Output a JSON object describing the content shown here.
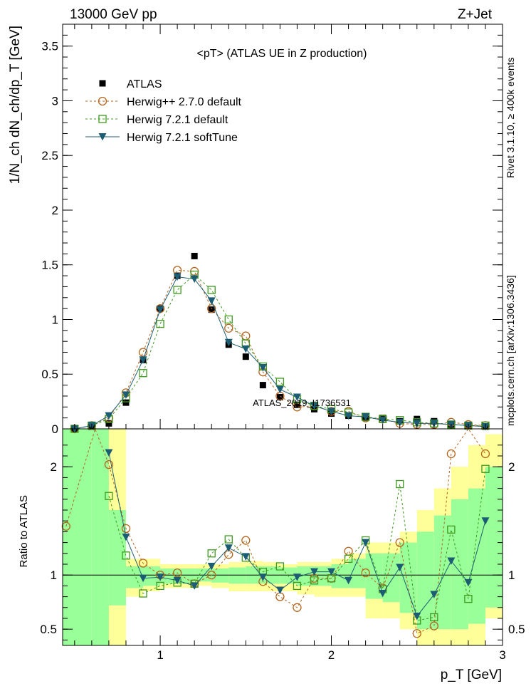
{
  "header": {
    "left": "13000 GeV pp",
    "right": "Z+Jet",
    "plot_title": "<pT> (ATLAS UE in Z production)",
    "side_top": "Rivet 3.1.10, ≥ 400k events",
    "side_bottom": "mcplots.cern.ch [arXiv:1306.3436]",
    "watermark": "ATLAS_2019_I1736531"
  },
  "colors": {
    "atlas": "#000000",
    "herwigpp": "#b5651d",
    "herwig_default": "#3f9a1f",
    "herwig_softtune": "#1d5d73",
    "band_yellow": "#ffff99",
    "band_green": "#99ff99"
  },
  "chart_data": {
    "type": "line",
    "xlabel": "p_T [GeV]",
    "ylabel": "1/N_ch dN_ch/dp_T [GeV]",
    "ratio_ylabel": "Ratio to ATLAS",
    "xlim": [
      0.43,
      3.0
    ],
    "ylim": [
      0,
      3.7
    ],
    "ratio_ylim": [
      0.35,
      2.35
    ],
    "x_ticks": [
      1,
      2,
      3
    ],
    "y_ticks": [
      0,
      0.5,
      1,
      1.5,
      2,
      2.5,
      3,
      3.5
    ],
    "ratio_ticks": [
      0.5,
      1,
      2
    ],
    "legend_position": "top-left",
    "x": [
      0.5,
      0.6,
      0.7,
      0.8,
      0.9,
      1.0,
      1.1,
      1.2,
      1.3,
      1.4,
      1.5,
      1.6,
      1.7,
      1.8,
      1.9,
      2.0,
      2.1,
      2.2,
      2.3,
      2.4,
      2.5,
      2.6,
      2.7,
      2.8,
      2.9
    ],
    "series": [
      {
        "name": "ATLAS",
        "marker": "filled-square",
        "values": [
          0.0,
          0.02,
          0.05,
          0.24,
          0.63,
          1.1,
          1.4,
          1.58,
          1.09,
          0.77,
          0.66,
          0.4,
          0.29,
          0.22,
          0.18,
          0.14,
          0.12,
          0.1,
          0.1,
          0.07,
          0.09,
          0.07,
          0.03,
          0.03,
          0.02
        ]
      },
      {
        "name": "Herwig++ 2.7.0 default",
        "marker": "open-circle",
        "values": [
          0.0,
          0.03,
          0.1,
          0.33,
          0.7,
          1.1,
          1.45,
          1.44,
          1.1,
          0.92,
          0.85,
          0.52,
          0.3,
          0.2,
          0.21,
          0.16,
          0.16,
          0.1,
          0.09,
          0.05,
          0.04,
          0.04,
          0.06,
          0.04,
          0.03
        ]
      },
      {
        "name": "Herwig 7.2.1 default",
        "marker": "open-square",
        "values": [
          0.0,
          0.03,
          0.09,
          0.28,
          0.51,
          0.96,
          1.27,
          1.41,
          1.27,
          1.0,
          0.78,
          0.57,
          0.43,
          0.27,
          0.21,
          0.18,
          0.15,
          0.11,
          0.09,
          0.08,
          0.06,
          0.05,
          0.04,
          0.03,
          0.03
        ]
      },
      {
        "name": "Herwig 7.2.1 softTune",
        "marker": "filled-triangle-down",
        "values": [
          0.0,
          0.03,
          0.12,
          0.31,
          0.63,
          1.09,
          1.39,
          1.37,
          1.17,
          0.79,
          0.73,
          0.56,
          0.36,
          0.29,
          0.21,
          0.16,
          0.12,
          0.11,
          0.08,
          0.06,
          0.05,
          0.05,
          0.04,
          0.03,
          0.02
        ]
      }
    ],
    "ratio_series": [
      {
        "name": "Herwig++ 2.7.0 default",
        "x": [
          0.45,
          0.62,
          0.7,
          0.8,
          0.9,
          1.0,
          1.1,
          1.2,
          1.3,
          1.4,
          1.5,
          1.6,
          1.7,
          1.8,
          1.9,
          2.0,
          2.1,
          2.2,
          2.3,
          2.4,
          2.5,
          2.6,
          2.7,
          2.8,
          2.9
        ],
        "values": [
          1.45,
          2.9,
          2.02,
          1.43,
          1.11,
          1.0,
          1.02,
          0.92,
          1.0,
          1.19,
          1.32,
          0.94,
          0.8,
          0.7,
          0.97,
          0.97,
          1.22,
          1.02,
          0.88,
          1.3,
          0.46,
          0.53,
          2.12,
          2.35,
          2.12
        ]
      },
      {
        "name": "Herwig 7.2.1 default",
        "x": [
          0.7,
          0.8,
          0.9,
          1.0,
          1.1,
          1.2,
          1.3,
          1.4,
          1.5,
          1.6,
          1.7,
          1.8,
          1.9,
          2.0,
          2.1,
          2.2,
          2.3,
          2.4,
          2.5,
          2.6,
          2.7,
          2.8,
          2.9
        ],
        "values": [
          1.73,
          1.18,
          0.83,
          0.9,
          0.93,
          0.92,
          1.2,
          1.33,
          1.16,
          1.03,
          1.08,
          0.9,
          0.95,
          0.97,
          1.15,
          1.32,
          0.87,
          1.84,
          0.58,
          0.61,
          1.42,
          0.78,
          1.98
        ]
      },
      {
        "name": "Herwig 7.2.1 softTune",
        "x": [
          0.7,
          0.8,
          0.9,
          1.0,
          1.1,
          1.2,
          1.3,
          1.4,
          1.5,
          1.6,
          1.7,
          1.8,
          1.9,
          2.0,
          2.1,
          2.2,
          2.3,
          2.4,
          2.5,
          2.6,
          2.7,
          2.8,
          2.9
        ],
        "values": [
          2.13,
          1.35,
          0.97,
          0.98,
          0.95,
          0.9,
          1.08,
          1.25,
          1.17,
          0.98,
          0.86,
          0.98,
          1.03,
          1.03,
          0.95,
          1.3,
          0.83,
          1.07,
          0.62,
          0.82,
          1.13,
          0.93,
          1.5
        ]
      }
    ],
    "atlas_bands": {
      "edges": [
        0.43,
        0.6,
        0.7,
        0.8,
        0.9,
        1.0,
        1.1,
        1.2,
        1.3,
        1.4,
        1.5,
        1.6,
        1.7,
        1.8,
        1.9,
        2.0,
        2.1,
        2.2,
        2.3,
        2.4,
        2.5,
        2.6,
        2.7,
        2.8,
        2.9,
        3.0
      ],
      "yellow_lo": [
        0.25,
        0.25,
        0.35,
        0.8,
        0.85,
        0.88,
        0.88,
        0.9,
        0.88,
        0.85,
        0.85,
        0.85,
        0.85,
        0.82,
        0.8,
        0.8,
        0.8,
        0.6,
        0.6,
        0.5,
        0.35,
        0.35,
        0.35,
        0.35,
        0.6
      ],
      "yellow_hi": [
        2.5,
        2.5,
        2.5,
        1.15,
        1.15,
        1.1,
        1.1,
        1.1,
        1.1,
        1.12,
        1.13,
        1.12,
        1.1,
        1.12,
        1.12,
        1.15,
        1.2,
        1.3,
        1.3,
        1.4,
        1.6,
        1.8,
        2.0,
        2.2,
        2.3
      ],
      "green_lo": [
        0.35,
        0.35,
        0.72,
        0.88,
        0.9,
        0.92,
        0.92,
        0.94,
        0.93,
        0.92,
        0.92,
        0.92,
        0.92,
        0.9,
        0.9,
        0.88,
        0.88,
        0.78,
        0.75,
        0.65,
        0.5,
        0.5,
        0.5,
        0.55,
        0.7
      ],
      "green_hi": [
        2.35,
        2.35,
        1.6,
        1.08,
        1.08,
        1.06,
        1.06,
        1.06,
        1.06,
        1.07,
        1.08,
        1.08,
        1.07,
        1.08,
        1.08,
        1.1,
        1.15,
        1.2,
        1.2,
        1.3,
        1.4,
        1.55,
        1.7,
        1.8,
        2.0
      ]
    }
  }
}
